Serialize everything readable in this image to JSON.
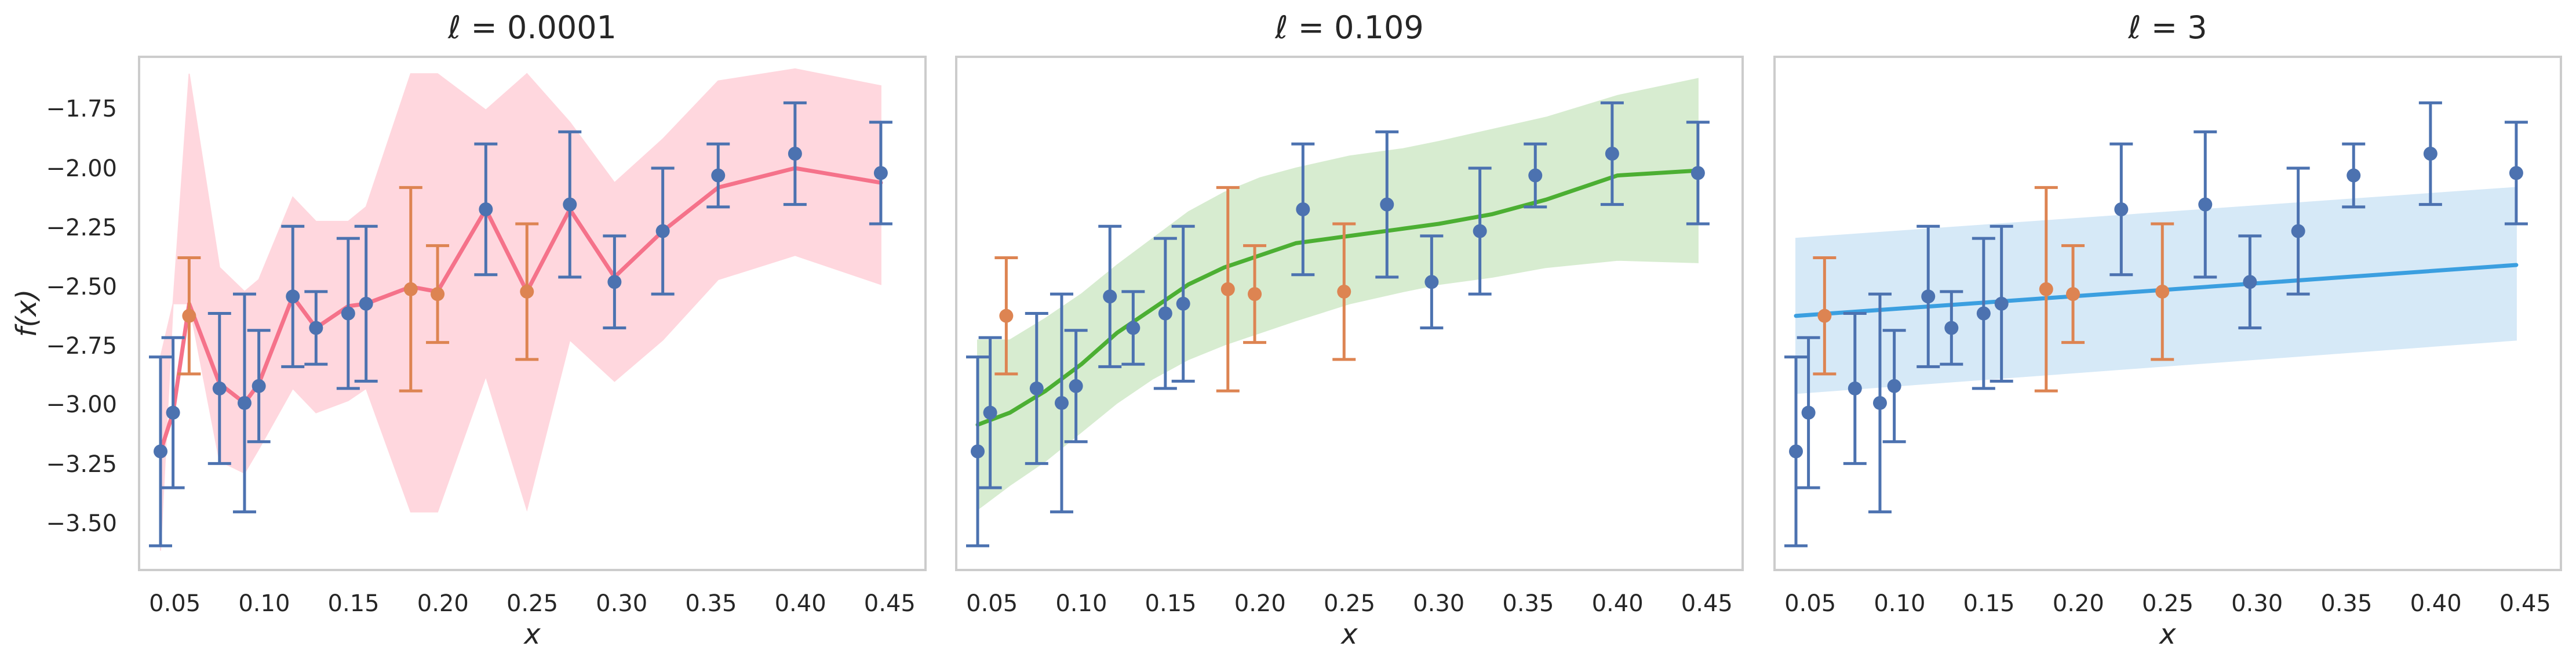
{
  "figure": {
    "ylabel": "f(x)",
    "xlabel": "x"
  },
  "colors": {
    "observed": "#4c72b0",
    "held_out": "#dd8452",
    "panel_border": "#cccccc",
    "tick_text": "#262626"
  },
  "chart_data": [
    {
      "type": "line",
      "title": "ℓ = 0.0001",
      "title_symbol": "ℓ",
      "title_value": " = 0.0001",
      "xlabel": "x",
      "ylabel": "f(x)",
      "xlim": [
        0.03,
        0.47
      ],
      "ylim": [
        -3.7,
        -1.58
      ],
      "xticks": [
        "0.05",
        "0.10",
        "0.15",
        "0.20",
        "0.25",
        "0.30",
        "0.35",
        "0.40",
        "0.45"
      ],
      "yticks": [
        "-1.75",
        "-2.00",
        "-2.25",
        "-2.50",
        "-2.75",
        "-3.00",
        "-3.25",
        "-3.50"
      ],
      "show_yticks": true,
      "grid": false,
      "fit_color": "#f5728a",
      "band_color": "#ffd5dd",
      "fit": {
        "x": [
          0.042,
          0.049,
          0.058,
          0.075,
          0.089,
          0.097,
          0.116,
          0.129,
          0.147,
          0.157,
          0.182,
          0.197,
          0.224,
          0.247,
          0.271,
          0.296,
          0.323,
          0.354,
          0.397,
          0.445
        ],
        "y": [
          -3.21,
          -3.05,
          -2.6,
          -2.93,
          -3.01,
          -2.93,
          -2.57,
          -2.7,
          -2.61,
          -2.6,
          -2.53,
          -2.55,
          -2.21,
          -2.55,
          -2.21,
          -2.49,
          -2.3,
          -2.12,
          -2.04,
          -2.1
        ],
        "lower": [
          -3.62,
          -2.6,
          -2.6,
          -3.25,
          -3.3,
          -3.2,
          -2.95,
          -3.05,
          -3.0,
          -2.95,
          -3.46,
          -3.46,
          -2.9,
          -3.45,
          -2.75,
          -2.92,
          -2.75,
          -2.5,
          -2.4,
          -2.52
        ],
        "upper": [
          -2.82,
          -2.6,
          -1.65,
          -2.45,
          -2.55,
          -2.5,
          -2.16,
          -2.26,
          -2.26,
          -2.2,
          -1.65,
          -1.65,
          -1.8,
          -1.65,
          -1.85,
          -2.1,
          -1.92,
          -1.68,
          -1.63,
          -1.7
        ]
      },
      "observed": [
        {
          "x": 0.042,
          "y": -3.21,
          "err": 0.39
        },
        {
          "x": 0.049,
          "y": -3.05,
          "err": 0.31
        },
        {
          "x": 0.075,
          "y": -2.95,
          "err": 0.31
        },
        {
          "x": 0.089,
          "y": -3.01,
          "err": 0.45
        },
        {
          "x": 0.097,
          "y": -2.94,
          "err": 0.23
        },
        {
          "x": 0.116,
          "y": -2.57,
          "err": 0.29
        },
        {
          "x": 0.129,
          "y": -2.7,
          "err": 0.15
        },
        {
          "x": 0.147,
          "y": -2.64,
          "err": 0.31
        },
        {
          "x": 0.157,
          "y": -2.6,
          "err": 0.32
        },
        {
          "x": 0.224,
          "y": -2.21,
          "err": 0.27
        },
        {
          "x": 0.271,
          "y": -2.19,
          "err": 0.3
        },
        {
          "x": 0.296,
          "y": -2.51,
          "err": 0.19
        },
        {
          "x": 0.323,
          "y": -2.3,
          "err": 0.26
        },
        {
          "x": 0.354,
          "y": -2.07,
          "err": 0.13
        },
        {
          "x": 0.397,
          "y": -1.98,
          "err": 0.21
        },
        {
          "x": 0.445,
          "y": -2.06,
          "err": 0.21
        }
      ],
      "held_out": [
        {
          "x": 0.058,
          "y": -2.65,
          "err": 0.24
        },
        {
          "x": 0.182,
          "y": -2.54,
          "err": 0.42
        },
        {
          "x": 0.197,
          "y": -2.56,
          "err": 0.2
        },
        {
          "x": 0.247,
          "y": -2.55,
          "err": 0.28
        }
      ]
    },
    {
      "type": "line",
      "title": "ℓ = 0.109",
      "title_symbol": "ℓ",
      "title_value": " = 0.109",
      "xlabel": "x",
      "xlim": [
        0.03,
        0.47
      ],
      "ylim": [
        -3.7,
        -1.58
      ],
      "xticks": [
        "0.05",
        "0.10",
        "0.15",
        "0.20",
        "0.25",
        "0.30",
        "0.35",
        "0.40",
        "0.45"
      ],
      "show_yticks": false,
      "grid": false,
      "fit_color": "#4caf33",
      "band_color": "#d5ecce",
      "fit": {
        "x": [
          0.042,
          0.06,
          0.08,
          0.1,
          0.12,
          0.14,
          0.16,
          0.18,
          0.2,
          0.22,
          0.25,
          0.28,
          0.3,
          0.33,
          0.36,
          0.4,
          0.445
        ],
        "y": [
          -3.1,
          -3.05,
          -2.96,
          -2.85,
          -2.72,
          -2.62,
          -2.52,
          -2.45,
          -2.4,
          -2.35,
          -2.32,
          -2.29,
          -2.27,
          -2.23,
          -2.17,
          -2.07,
          -2.05
        ],
        "lower": [
          -3.45,
          -3.35,
          -3.25,
          -3.13,
          -3.01,
          -2.91,
          -2.83,
          -2.77,
          -2.72,
          -2.67,
          -2.6,
          -2.55,
          -2.52,
          -2.49,
          -2.45,
          -2.42,
          -2.43
        ],
        "upper": [
          -2.75,
          -2.75,
          -2.66,
          -2.56,
          -2.44,
          -2.33,
          -2.22,
          -2.14,
          -2.08,
          -2.04,
          -1.99,
          -1.96,
          -1.93,
          -1.88,
          -1.83,
          -1.74,
          -1.67
        ]
      },
      "observed": [
        {
          "x": 0.042,
          "y": -3.21,
          "err": 0.39
        },
        {
          "x": 0.049,
          "y": -3.05,
          "err": 0.31
        },
        {
          "x": 0.075,
          "y": -2.95,
          "err": 0.31
        },
        {
          "x": 0.089,
          "y": -3.01,
          "err": 0.45
        },
        {
          "x": 0.097,
          "y": -2.94,
          "err": 0.23
        },
        {
          "x": 0.116,
          "y": -2.57,
          "err": 0.29
        },
        {
          "x": 0.129,
          "y": -2.7,
          "err": 0.15
        },
        {
          "x": 0.147,
          "y": -2.64,
          "err": 0.31
        },
        {
          "x": 0.157,
          "y": -2.6,
          "err": 0.32
        },
        {
          "x": 0.224,
          "y": -2.21,
          "err": 0.27
        },
        {
          "x": 0.271,
          "y": -2.19,
          "err": 0.3
        },
        {
          "x": 0.296,
          "y": -2.51,
          "err": 0.19
        },
        {
          "x": 0.323,
          "y": -2.3,
          "err": 0.26
        },
        {
          "x": 0.354,
          "y": -2.07,
          "err": 0.13
        },
        {
          "x": 0.397,
          "y": -1.98,
          "err": 0.21
        },
        {
          "x": 0.445,
          "y": -2.06,
          "err": 0.21
        }
      ],
      "held_out": [
        {
          "x": 0.058,
          "y": -2.65,
          "err": 0.24
        },
        {
          "x": 0.182,
          "y": -2.54,
          "err": 0.42
        },
        {
          "x": 0.197,
          "y": -2.56,
          "err": 0.2
        },
        {
          "x": 0.247,
          "y": -2.55,
          "err": 0.28
        }
      ]
    },
    {
      "type": "line",
      "title": "ℓ = 3",
      "title_symbol": "ℓ",
      "title_value": " = 3",
      "xlabel": "x",
      "xlim": [
        0.03,
        0.47
      ],
      "ylim": [
        -3.7,
        -1.58
      ],
      "xticks": [
        "0.05",
        "0.10",
        "0.15",
        "0.20",
        "0.25",
        "0.30",
        "0.35",
        "0.40",
        "0.45"
      ],
      "show_yticks": false,
      "grid": false,
      "fit_color": "#3b9fe0",
      "band_color": "#d4e8f7",
      "fit": {
        "x": [
          0.042,
          0.445
        ],
        "y": [
          -2.65,
          -2.44
        ],
        "lower": [
          -2.97,
          -2.75
        ],
        "upper": [
          -2.33,
          -2.12
        ]
      },
      "observed": [
        {
          "x": 0.042,
          "y": -3.21,
          "err": 0.39
        },
        {
          "x": 0.049,
          "y": -3.05,
          "err": 0.31
        },
        {
          "x": 0.075,
          "y": -2.95,
          "err": 0.31
        },
        {
          "x": 0.089,
          "y": -3.01,
          "err": 0.45
        },
        {
          "x": 0.097,
          "y": -2.94,
          "err": 0.23
        },
        {
          "x": 0.116,
          "y": -2.57,
          "err": 0.29
        },
        {
          "x": 0.129,
          "y": -2.7,
          "err": 0.15
        },
        {
          "x": 0.147,
          "y": -2.64,
          "err": 0.31
        },
        {
          "x": 0.157,
          "y": -2.6,
          "err": 0.32
        },
        {
          "x": 0.224,
          "y": -2.21,
          "err": 0.27
        },
        {
          "x": 0.271,
          "y": -2.19,
          "err": 0.3
        },
        {
          "x": 0.296,
          "y": -2.51,
          "err": 0.19
        },
        {
          "x": 0.323,
          "y": -2.3,
          "err": 0.26
        },
        {
          "x": 0.354,
          "y": -2.07,
          "err": 0.13
        },
        {
          "x": 0.397,
          "y": -1.98,
          "err": 0.21
        },
        {
          "x": 0.445,
          "y": -2.06,
          "err": 0.21
        }
      ],
      "held_out": [
        {
          "x": 0.058,
          "y": -2.65,
          "err": 0.24
        },
        {
          "x": 0.182,
          "y": -2.54,
          "err": 0.42
        },
        {
          "x": 0.197,
          "y": -2.56,
          "err": 0.2
        },
        {
          "x": 0.247,
          "y": -2.55,
          "err": 0.28
        }
      ]
    }
  ]
}
